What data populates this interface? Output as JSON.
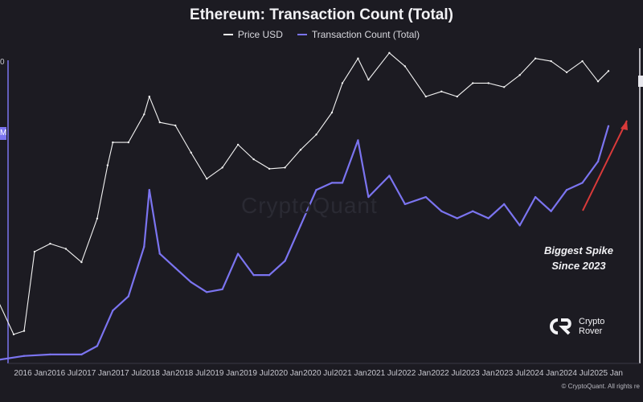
{
  "chart_data": {
    "type": "line",
    "title": "Ethereum: Transaction Count (Total)",
    "x_tick_labels": [
      "2016 Jan",
      "2016 Jul",
      "2017 Jan",
      "2017 Jul",
      "2018 Jan",
      "2018 Jul",
      "2019 Jan",
      "2019 Jul",
      "2020 Jan",
      "2020 Jul",
      "2021 Jan",
      "2021 Jul",
      "2022 Jan",
      "2022 Jul",
      "2023 Jan",
      "2023 Jul",
      "2024 Jan",
      "2024 Jul",
      "2025 Jan"
    ],
    "series": [
      {
        "name": "Price USD",
        "color": "#f2f2f2",
        "x": [
          "2015-08",
          "2015-11",
          "2016-01",
          "2016-03",
          "2016-06",
          "2016-09",
          "2016-12",
          "2017-03",
          "2017-05",
          "2017-06",
          "2017-09",
          "2017-12",
          "2018-01",
          "2018-03",
          "2018-06",
          "2018-09",
          "2018-12",
          "2019-03",
          "2019-06",
          "2019-09",
          "2019-12",
          "2020-03",
          "2020-06",
          "2020-09",
          "2020-12",
          "2021-02",
          "2021-05",
          "2021-07",
          "2021-11",
          "2022-02",
          "2022-06",
          "2022-09",
          "2022-12",
          "2023-03",
          "2023-06",
          "2023-09",
          "2023-12",
          "2024-03",
          "2024-06",
          "2024-09",
          "2024-12",
          "2025-03",
          "2025-05"
        ],
        "y": [
          2.5,
          0.9,
          1.0,
          11,
          14,
          12,
          8,
          30,
          150,
          300,
          300,
          700,
          1200,
          550,
          500,
          220,
          100,
          140,
          280,
          180,
          135,
          140,
          240,
          380,
          740,
          1800,
          3800,
          2000,
          4500,
          3000,
          1200,
          1400,
          1200,
          1800,
          1800,
          1600,
          2300,
          3800,
          3500,
          2500,
          3500,
          1900,
          2600
        ]
      },
      {
        "name": "Transaction Count (Total)",
        "color": "#7b74f0",
        "x": [
          "2015-08",
          "2016-01",
          "2016-06",
          "2016-12",
          "2017-03",
          "2017-06",
          "2017-09",
          "2017-12",
          "2018-01",
          "2018-03",
          "2018-06",
          "2018-09",
          "2018-12",
          "2019-03",
          "2019-06",
          "2019-09",
          "2019-12",
          "2020-03",
          "2020-06",
          "2020-09",
          "2020-12",
          "2021-02",
          "2021-05",
          "2021-07",
          "2021-11",
          "2022-02",
          "2022-06",
          "2022-09",
          "2022-12",
          "2023-03",
          "2023-06",
          "2023-09",
          "2023-12",
          "2024-03",
          "2024-06",
          "2024-09",
          "2024-12",
          "2025-03",
          "2025-05"
        ],
        "y": [
          0.002,
          0.03,
          0.04,
          0.04,
          0.1,
          0.35,
          0.45,
          0.8,
          1.2,
          0.75,
          0.65,
          0.55,
          0.48,
          0.5,
          0.75,
          0.6,
          0.6,
          0.7,
          0.95,
          1.2,
          1.25,
          1.25,
          1.55,
          1.15,
          1.3,
          1.1,
          1.15,
          1.05,
          1.0,
          1.05,
          1.0,
          1.1,
          0.95,
          1.15,
          1.05,
          1.2,
          1.25,
          1.4,
          1.65
        ]
      }
    ]
  },
  "legend": [
    {
      "label": "Price USD",
      "color": "#f2f2f2"
    },
    {
      "label": "Transaction Count (Total)",
      "color": "#7b74f0"
    }
  ],
  "annotation": {
    "line1": "Biggest Spike",
    "line2": "Since 2023"
  },
  "brand": {
    "line1": "Crypto",
    "line2": "Rover"
  },
  "footer": "© CryptoQuant. All rights re",
  "watermark": "CryptoQuant",
  "left_labels": [
    "0",
    "M"
  ]
}
